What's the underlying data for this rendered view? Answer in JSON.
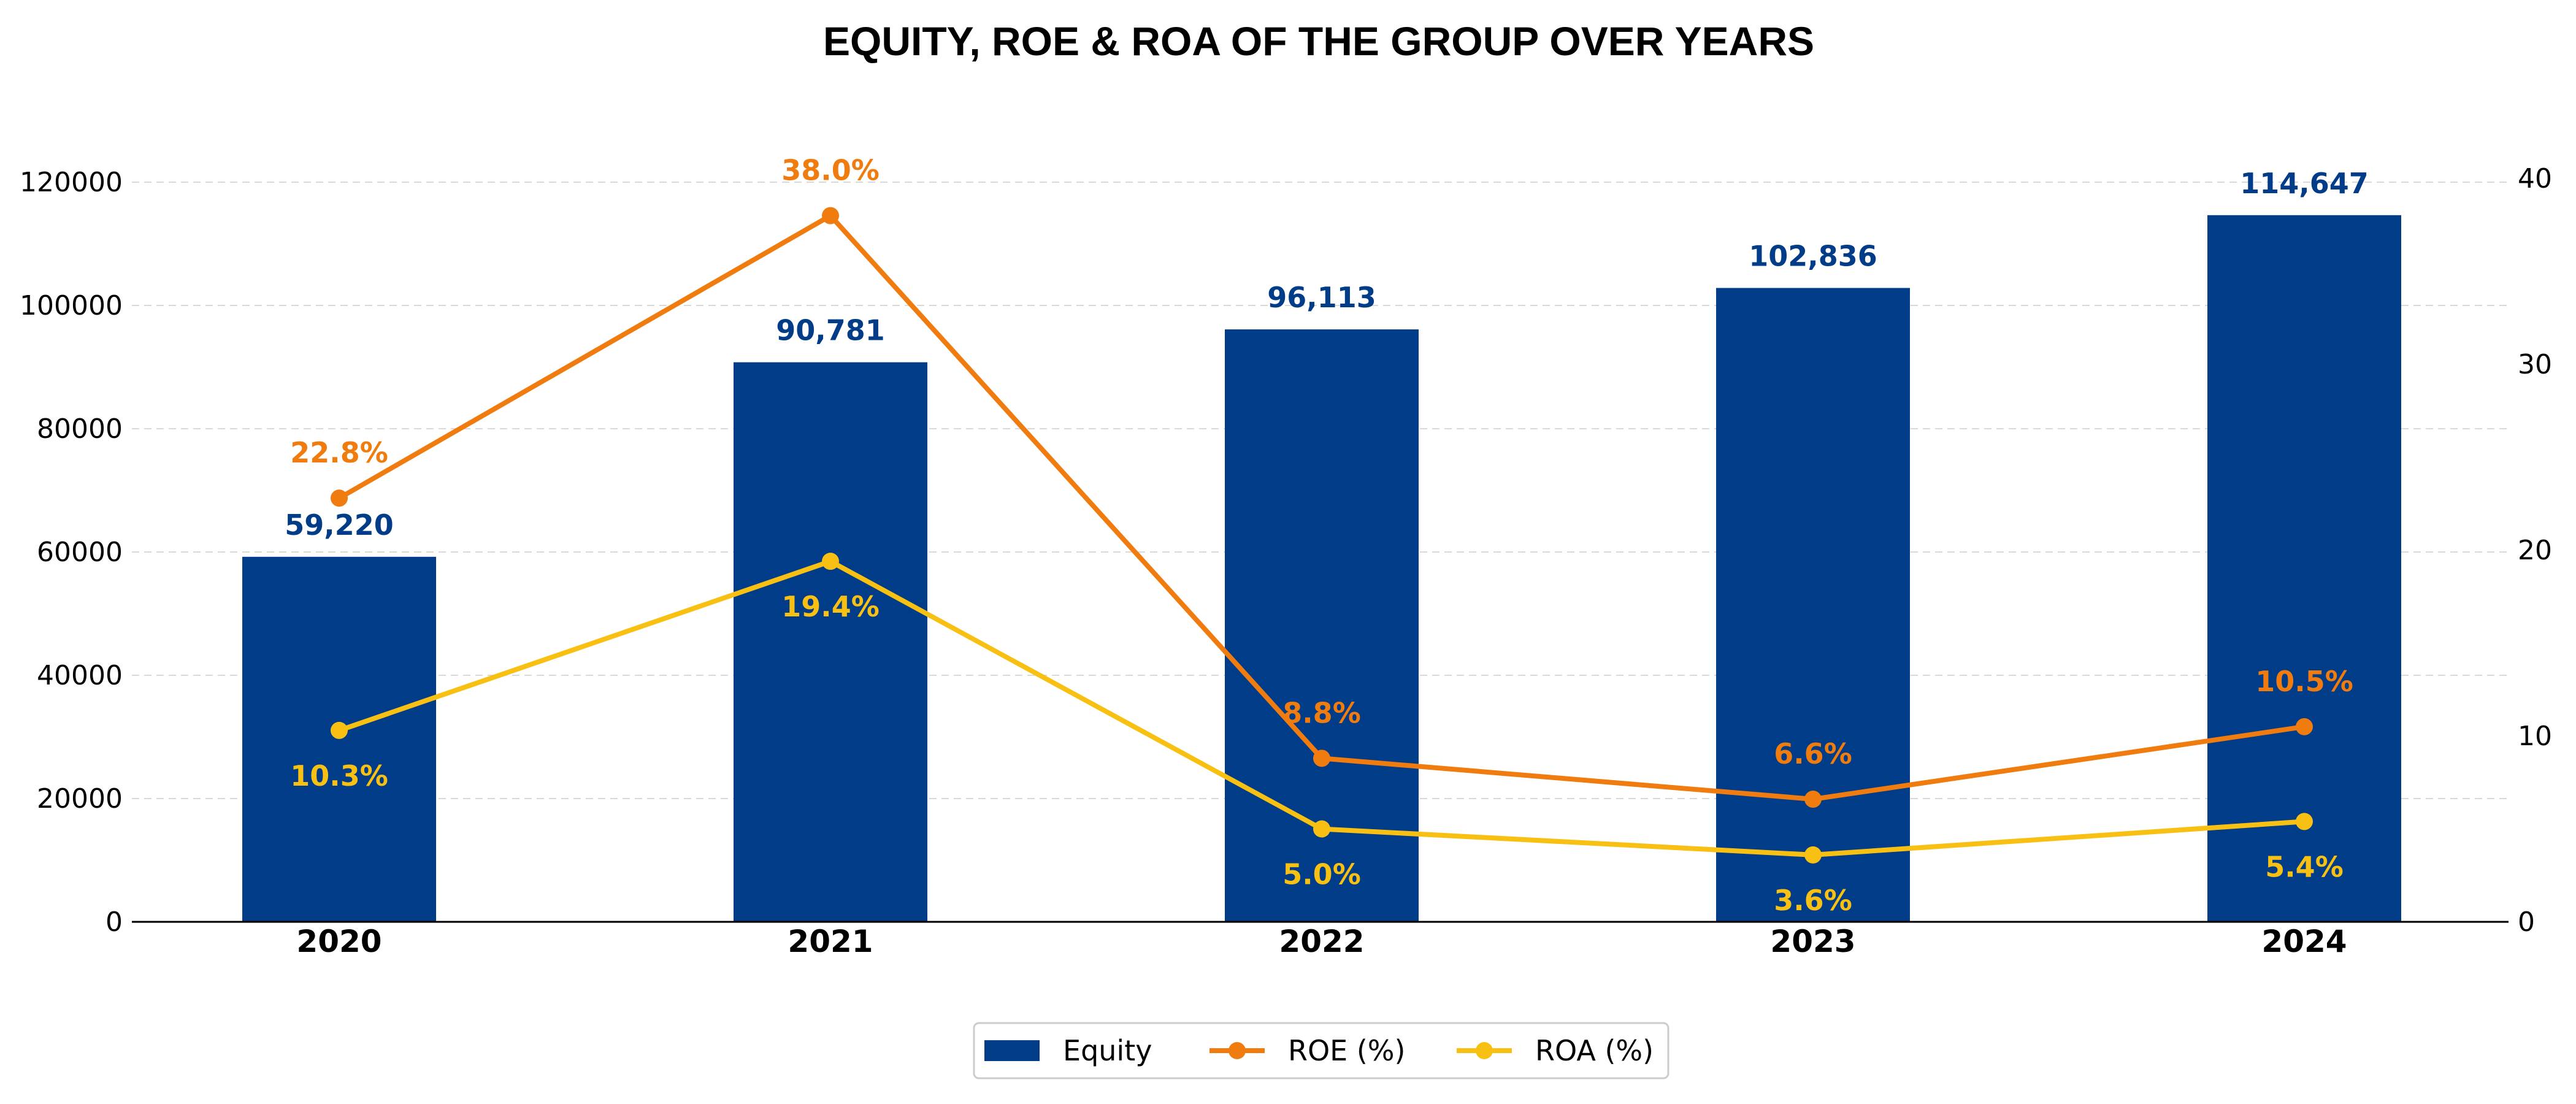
{
  "chart_data": {
    "type": "bar",
    "title": "EQUITY, ROE & ROA OF THE GROUP OVER YEARS",
    "categories": [
      "2020",
      "2021",
      "2022",
      "2023",
      "2024"
    ],
    "series": [
      {
        "name": "Equity",
        "type": "bar",
        "axis": "left",
        "color": "#003c87",
        "values": [
          59220,
          90781,
          96113,
          102836,
          114647
        ],
        "labels": [
          "59,220",
          "90,781",
          "96,113",
          "102,836",
          "114,647"
        ]
      },
      {
        "name": "ROE (%)",
        "type": "line",
        "axis": "right",
        "color": "#f07c10",
        "values": [
          22.8,
          38.0,
          8.8,
          6.6,
          10.5
        ],
        "labels": [
          "22.8%",
          "38.0%",
          "8.8%",
          "6.6%",
          "10.5%"
        ]
      },
      {
        "name": "ROA (%)",
        "type": "line",
        "axis": "right",
        "color": "#f9c014",
        "values": [
          10.3,
          19.4,
          5.0,
          3.6,
          5.4
        ],
        "labels": [
          "10.3%",
          "19.4%",
          "5.0%",
          "3.6%",
          "5.4%"
        ]
      }
    ],
    "y_left": {
      "ticks": [
        "0",
        "20000",
        "40000",
        "60000",
        "80000",
        "100000",
        "120000"
      ],
      "range": [
        0,
        120000
      ]
    },
    "y_right": {
      "ticks": [
        "0",
        "10",
        "20",
        "30",
        "40"
      ],
      "range": [
        0,
        40
      ]
    },
    "grid": true,
    "legend": "bottom-center"
  }
}
